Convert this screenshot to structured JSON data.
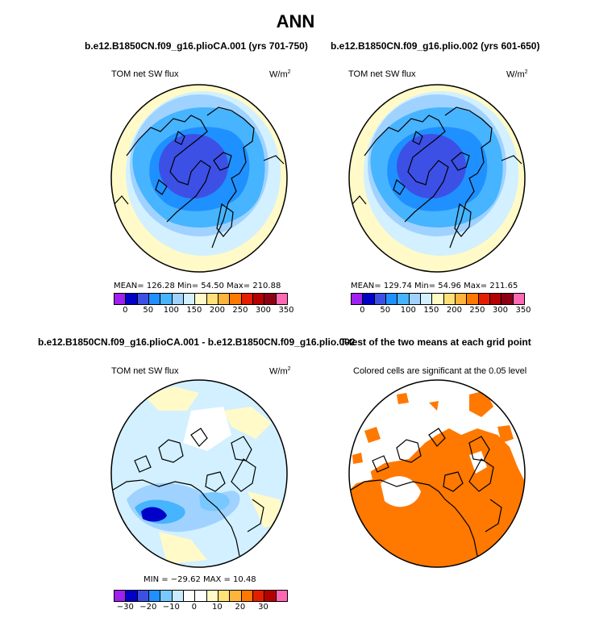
{
  "page": {
    "title": "ANN"
  },
  "panels": {
    "p1": {
      "title": "b.e12.B1850CN.f09_g16.plioCA.001 (yrs 701-750)",
      "left_label": "TOM net SW flux",
      "units_base": "W/m",
      "units_sup": "2",
      "stats": "MEAN=  126.28    Min=   54.50    Max=  210.88"
    },
    "p2": {
      "title": "b.e12.B1850CN.f09_g16.plio.002 (yrs 601-650)",
      "left_label": "TOM net SW flux",
      "units_base": "W/m",
      "units_sup": "2",
      "stats": "MEAN=  129.74    Min=   54.96    Max=  211.65"
    },
    "p3": {
      "title": "b.e12.B1850CN.f09_g16.plioCA.001 - b.e12.B1850CN.f09_g16.plio.002",
      "left_label": "TOM net SW flux",
      "units_base": "W/m",
      "units_sup": "2",
      "stats": "MIN  =  −29.62   MAX  =    10.48"
    },
    "p4": {
      "title": "T-test of the two means at each grid point",
      "subtitle": "Colored cells are significant at the 0.05 level"
    }
  },
  "colorbars": {
    "abs": {
      "colors": [
        "#a020f0",
        "#0000c8",
        "#3c50e6",
        "#1e90ff",
        "#46b4ff",
        "#a0d2ff",
        "#d2f0ff",
        "#fffac8",
        "#ffe178",
        "#ffb43c",
        "#ff7800",
        "#e61e00",
        "#b40000",
        "#8c0014",
        "#ff69b4"
      ],
      "ticks": [
        "0",
        "50",
        "100",
        "150",
        "200",
        "250",
        "300",
        "350"
      ]
    },
    "diff": {
      "colors": [
        "#a020f0",
        "#0000c8",
        "#3c50e6",
        "#1e90ff",
        "#78c8ff",
        "#c8ebff",
        "#ffffff",
        "#ffffff",
        "#fffac8",
        "#ffe178",
        "#ffb43c",
        "#ff7800",
        "#e61e00",
        "#b40000",
        "#ff69b4"
      ],
      "ticks": [
        "−30",
        "−20",
        "−10",
        "0",
        "10",
        "20",
        "30"
      ]
    }
  },
  "chart_data": [
    {
      "type": "heatmap",
      "title": "b.e12.B1850CN.f09_g16.plioCA.001 (yrs 701-750)",
      "variable": "TOM net SW flux",
      "units": "W/m2",
      "projection": "polar stereographic (north)",
      "mean": 126.28,
      "min": 54.5,
      "max": 210.88,
      "levels": [
        0,
        25,
        50,
        75,
        100,
        125,
        150,
        175,
        200,
        225,
        250,
        275,
        300,
        325,
        350
      ]
    },
    {
      "type": "heatmap",
      "title": "b.e12.B1850CN.f09_g16.plio.002 (yrs 601-650)",
      "variable": "TOM net SW flux",
      "units": "W/m2",
      "projection": "polar stereographic (north)",
      "mean": 129.74,
      "min": 54.96,
      "max": 211.65,
      "levels": [
        0,
        25,
        50,
        75,
        100,
        125,
        150,
        175,
        200,
        225,
        250,
        275,
        300,
        325,
        350
      ]
    },
    {
      "type": "heatmap",
      "title": "b.e12.B1850CN.f09_g16.plioCA.001 - b.e12.B1850CN.f09_g16.plio.002",
      "variable": "TOM net SW flux",
      "units": "W/m2",
      "projection": "polar stereographic (north)",
      "min": -29.62,
      "max": 10.48,
      "levels": [
        -35,
        -30,
        -25,
        -20,
        -15,
        -10,
        -5,
        0,
        5,
        10,
        15,
        20,
        25,
        30,
        35
      ]
    },
    {
      "type": "heatmap",
      "title": "T-test of the two means at each grid point",
      "subtitle": "Colored cells are significant at the 0.05 level",
      "significance_level": 0.05
    }
  ]
}
